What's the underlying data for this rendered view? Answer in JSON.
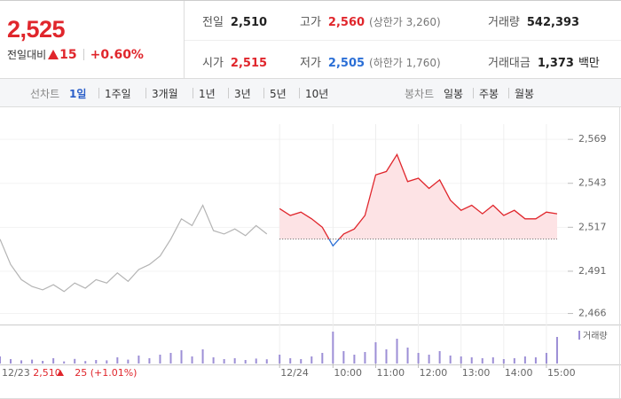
{
  "quote": {
    "price": "2,525",
    "change_label": "전일대비",
    "change": "15",
    "change_pct": "+0.60%"
  },
  "info": [
    {
      "label": "전일",
      "value": "2,510"
    },
    {
      "label": "고가",
      "value": "2,560",
      "note": "(상한가 3,260)"
    },
    {
      "label": "거래량",
      "value": "542,393"
    },
    {
      "label": "시가",
      "value": "2,515"
    },
    {
      "label": "저가",
      "value": "2,505",
      "note": "(하한가 1,760)"
    },
    {
      "label": "거래대금",
      "value": "1,373",
      "unit": "백만"
    }
  ],
  "tabs": {
    "line_label": "선차트",
    "line_periods": [
      "1일",
      "1주일",
      "3개월",
      "1년",
      "3년",
      "5년",
      "10년"
    ],
    "candle_label": "봉차트",
    "candle_periods": [
      "일봉",
      "주봉",
      "월봉"
    ]
  },
  "chart_data": {
    "type": "line",
    "xlim": [
      2.2,
      15.5
    ],
    "ylim": [
      2460,
      2578
    ],
    "yticks": [
      {
        "value": 2569,
        "label": "2,569"
      },
      {
        "value": 2543,
        "label": "2,543"
      },
      {
        "value": 2517,
        "label": "2,517"
      },
      {
        "value": 2491,
        "label": "2,491"
      },
      {
        "value": 2466,
        "label": "2,466"
      }
    ],
    "xticks": [
      {
        "value": 8.75,
        "label": "12/24"
      },
      {
        "value": 10,
        "label": "10:00"
      },
      {
        "value": 11,
        "label": "11:00"
      },
      {
        "value": 12,
        "label": "12:00"
      },
      {
        "value": 13,
        "label": "13:00"
      },
      {
        "value": 14,
        "label": "14:00"
      },
      {
        "value": 15,
        "label": "15:00"
      }
    ],
    "reference_line": 2510,
    "volume_name": "거래량",
    "volume_color": "#9d8fd6",
    "volume_ylim": [
      0,
      20000
    ],
    "previous_day": {
      "date": "12/23",
      "close": "2,510",
      "change": "25",
      "change_pct": "(+1.01%)"
    },
    "series": [
      {
        "color": "#b4b4b4",
        "x": [
          2.2,
          2.45,
          2.7,
          2.95,
          3.2,
          3.45,
          3.7,
          3.95,
          4.2,
          4.45,
          4.7,
          4.95,
          5.2,
          5.45,
          5.7,
          5.95,
          6.2,
          6.45,
          6.7,
          6.95,
          7.2,
          7.45,
          7.7,
          7.95,
          8.2,
          8.45
        ],
        "values": [
          2510,
          2495,
          2486,
          2482,
          2480,
          2483,
          2479,
          2484,
          2481,
          2486,
          2484,
          2490,
          2485,
          2492,
          2495,
          2500,
          2510,
          2522,
          2518,
          2530,
          2515,
          2513,
          2516,
          2512,
          2518,
          2513
        ],
        "volume": [
          4000,
          2500,
          1800,
          2200,
          1500,
          3000,
          1200,
          2600,
          1400,
          2000,
          1800,
          3500,
          2200,
          4500,
          3000,
          5000,
          6000,
          7500,
          4000,
          8000,
          3500,
          2500,
          3000,
          2000,
          2800,
          2400
        ]
      },
      {
        "color": "#e0262c",
        "down_color": "#2b6fd6",
        "fill": "#fde3e5",
        "x": [
          8.75,
          9,
          9.25,
          9.5,
          9.75,
          10,
          10.25,
          10.5,
          10.75,
          11,
          11.25,
          11.5,
          11.75,
          12,
          12.25,
          12.5,
          12.75,
          13,
          13.25,
          13.5,
          13.75,
          14,
          14.25,
          14.5,
          14.75,
          15,
          15.25
        ],
        "values": [
          2528,
          2524,
          2526,
          2522,
          2517,
          2506,
          2513,
          2516,
          2524,
          2548,
          2550,
          2560,
          2544,
          2546,
          2540,
          2545,
          2533,
          2527,
          2530,
          2525,
          2530,
          2524,
          2527,
          2522,
          2522,
          2526,
          2525
        ],
        "volume": [
          5000,
          3000,
          2500,
          4000,
          6000,
          18000,
          7000,
          5000,
          6500,
          12000,
          8000,
          14000,
          9000,
          6000,
          5000,
          7000,
          4500,
          4000,
          3500,
          3000,
          3500,
          2500,
          3000,
          4000,
          3500,
          6000,
          15000
        ]
      }
    ]
  }
}
